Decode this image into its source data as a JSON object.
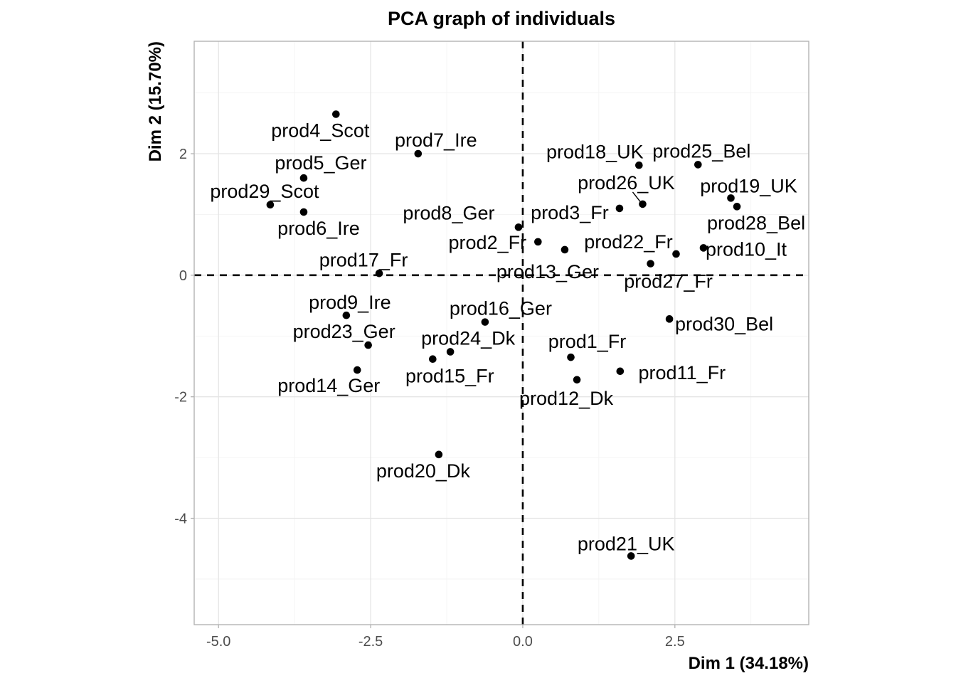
{
  "chart_data": {
    "type": "scatter",
    "title": "PCA graph of individuals",
    "xlabel": "Dim 1 (34.18%)",
    "ylabel": "Dim 2 (15.70%)",
    "xlim": [
      -5.4,
      4.7
    ],
    "ylim": [
      -5.75,
      3.85
    ],
    "x_ticks": [
      -5.0,
      -2.5,
      0.0,
      2.5
    ],
    "x_tick_labels": [
      "-5.0",
      "-2.5",
      "0.0",
      "2.5"
    ],
    "y_ticks": [
      -4,
      -2,
      0,
      2
    ],
    "y_tick_labels": [
      "-4",
      "-2",
      "0",
      "2"
    ],
    "x_minor_ticks": [
      -3.75,
      -1.25,
      1.25,
      3.75
    ],
    "y_minor_ticks": [
      -5,
      -3,
      -1,
      1,
      3
    ],
    "grid": true,
    "reference_lines": {
      "x": 0,
      "y": 0,
      "style": "dashed"
    },
    "point_color": "#000000",
    "points": [
      {
        "label": "prod1_Fr",
        "x": 0.79,
        "y": -1.35
      },
      {
        "label": "prod2_Fr",
        "x": 0.25,
        "y": 0.55
      },
      {
        "label": "prod3_Fr",
        "x": 1.59,
        "y": 1.1
      },
      {
        "label": "prod4_Scot",
        "x": -3.07,
        "y": 2.65
      },
      {
        "label": "prod5_Ger",
        "x": -3.6,
        "y": 1.6
      },
      {
        "label": "prod6_Ire",
        "x": -3.6,
        "y": 1.04
      },
      {
        "label": "prod7_Ire",
        "x": -1.72,
        "y": 2.0
      },
      {
        "label": "prod8_Ger",
        "x": -0.07,
        "y": 0.79
      },
      {
        "label": "prod9_Ire",
        "x": -2.9,
        "y": -0.66
      },
      {
        "label": "prod10_It",
        "x": 2.97,
        "y": 0.45
      },
      {
        "label": "prod11_Fr",
        "x": 1.6,
        "y": -1.58
      },
      {
        "label": "prod12_Dk",
        "x": 0.89,
        "y": -1.72
      },
      {
        "label": "prod13_Ger",
        "x": 0.69,
        "y": 0.42
      },
      {
        "label": "prod14_Ger",
        "x": -2.72,
        "y": -1.56
      },
      {
        "label": "prod15_Fr",
        "x": -1.48,
        "y": -1.38
      },
      {
        "label": "prod16_Ger",
        "x": -0.62,
        "y": -0.77
      },
      {
        "label": "prod17_Fr",
        "x": -2.36,
        "y": 0.03
      },
      {
        "label": "prod18_UK",
        "x": 1.91,
        "y": 1.81
      },
      {
        "label": "prod19_UK",
        "x": 3.42,
        "y": 1.27
      },
      {
        "label": "prod20_Dk",
        "x": -1.38,
        "y": -2.95
      },
      {
        "label": "prod21_UK",
        "x": 1.78,
        "y": -4.62
      },
      {
        "label": "prod22_Fr",
        "x": 2.52,
        "y": 0.35
      },
      {
        "label": "prod23_Ger",
        "x": -2.54,
        "y": -1.15
      },
      {
        "label": "prod24_Dk",
        "x": -1.19,
        "y": -1.26
      },
      {
        "label": "prod25_Bel",
        "x": 2.88,
        "y": 1.82
      },
      {
        "label": "prod26_UK",
        "x": 1.97,
        "y": 1.17
      },
      {
        "label": "prod27_Fr",
        "x": 2.1,
        "y": 0.19
      },
      {
        "label": "prod28_Bel",
        "x": 3.52,
        "y": 1.13
      },
      {
        "label": "prod29_Scot",
        "x": -4.15,
        "y": 1.16
      },
      {
        "label": "prod30_Bel",
        "x": 2.41,
        "y": -0.72
      }
    ]
  }
}
